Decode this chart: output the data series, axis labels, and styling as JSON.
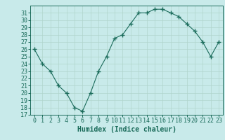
{
  "x": [
    0,
    1,
    2,
    3,
    4,
    5,
    6,
    7,
    8,
    9,
    10,
    11,
    12,
    13,
    14,
    15,
    16,
    17,
    18,
    19,
    20,
    21,
    22,
    23
  ],
  "y": [
    26.0,
    24.0,
    23.0,
    21.0,
    20.0,
    18.0,
    17.5,
    20.0,
    23.0,
    25.0,
    27.5,
    28.0,
    29.5,
    31.0,
    31.0,
    31.5,
    31.5,
    31.0,
    30.5,
    29.5,
    28.5,
    27.0,
    25.0,
    27.0
  ],
  "line_color": "#1a6b5a",
  "marker": "+",
  "marker_size": 4,
  "bg_color": "#c8eaea",
  "grid_color": "#b0d5cc",
  "xlabel": "Humidex (Indice chaleur)",
  "xlim": [
    -0.5,
    23.5
  ],
  "ylim": [
    17,
    32
  ],
  "yticks": [
    17,
    18,
    19,
    20,
    21,
    22,
    23,
    24,
    25,
    26,
    27,
    28,
    29,
    30,
    31
  ],
  "xticks": [
    0,
    1,
    2,
    3,
    4,
    5,
    6,
    7,
    8,
    9,
    10,
    11,
    12,
    13,
    14,
    15,
    16,
    17,
    18,
    19,
    20,
    21,
    22,
    23
  ],
  "tick_color": "#1a6b5a",
  "label_fontsize": 7,
  "tick_fontsize": 6
}
